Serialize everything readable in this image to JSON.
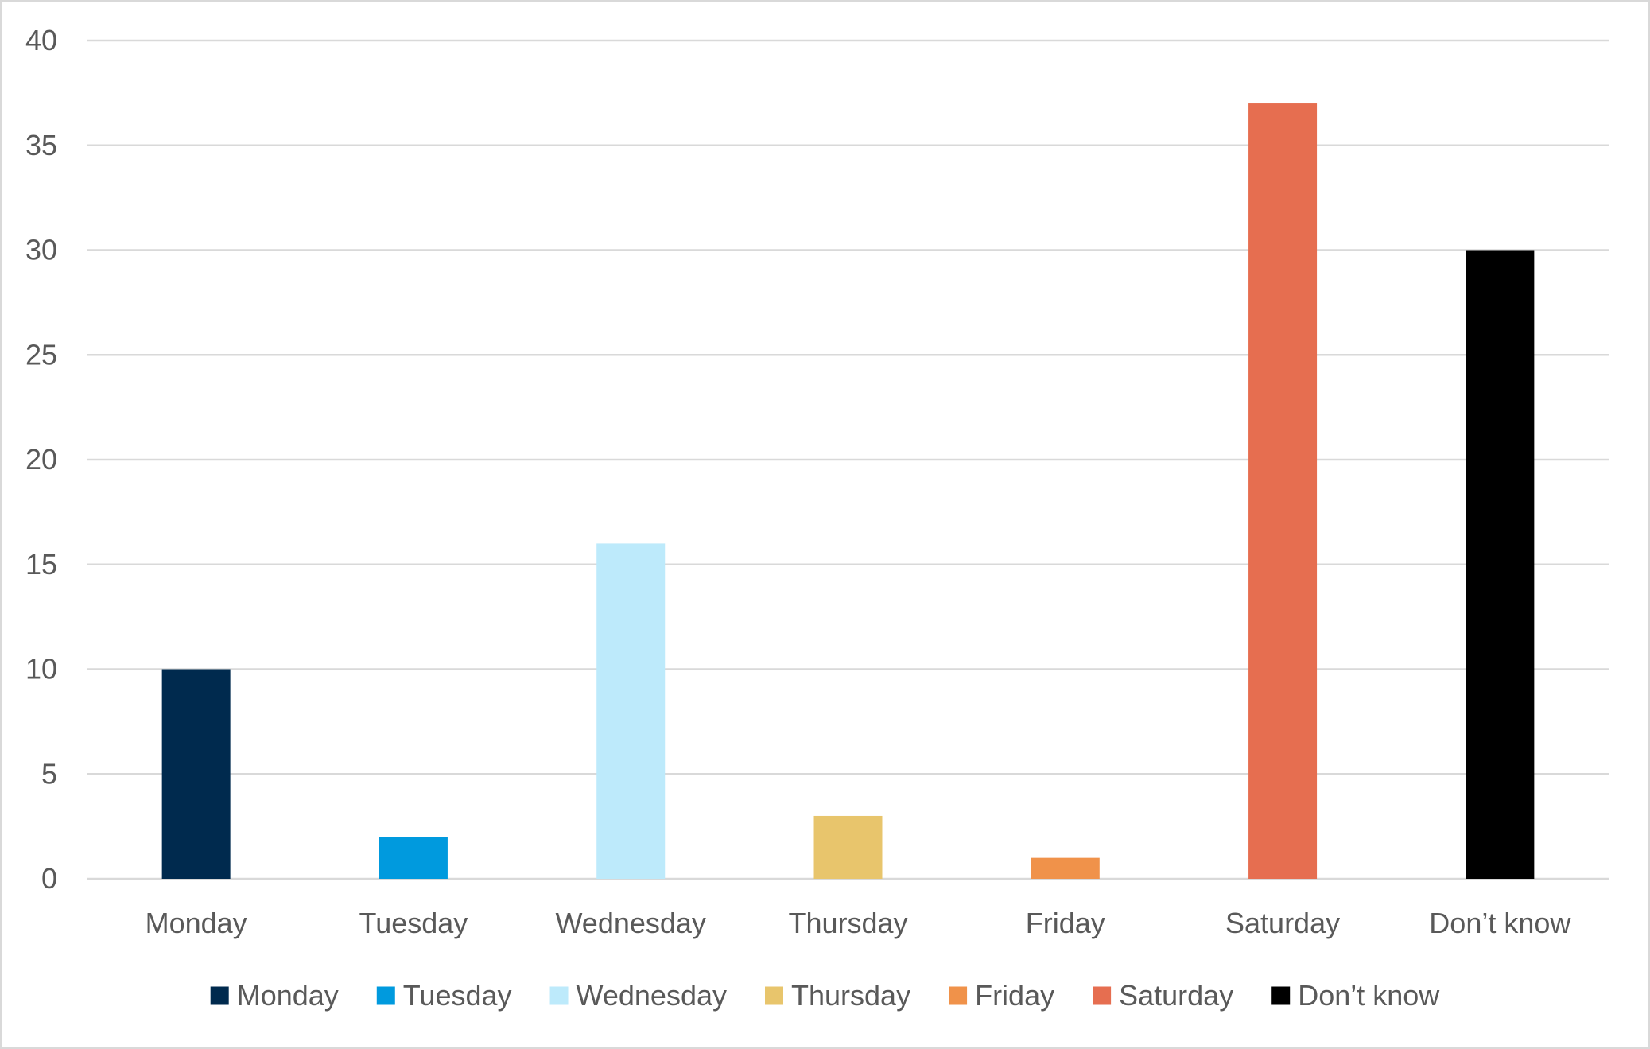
{
  "chart_data": {
    "type": "bar",
    "categories": [
      "Monday",
      "Tuesday",
      "Wednesday",
      "Thursday",
      "Friday",
      "Saturday",
      "Don’t know"
    ],
    "values": [
      10,
      2,
      16,
      3,
      1,
      37,
      30
    ],
    "colors": [
      "#002a4e",
      "#009ade",
      "#bdeafb",
      "#e8c56c",
      "#f0924a",
      "#e66e50",
      "#000000"
    ],
    "ylim": [
      0,
      40
    ],
    "yticks": [
      0,
      5,
      10,
      15,
      20,
      25,
      30,
      35,
      40
    ],
    "title": "",
    "xlabel": "",
    "ylabel": "",
    "grid": true,
    "legend": {
      "position": "bottom",
      "entries": [
        "Monday",
        "Tuesday",
        "Wednesday",
        "Thursday",
        "Friday",
        "Saturday",
        "Don’t know"
      ]
    }
  }
}
